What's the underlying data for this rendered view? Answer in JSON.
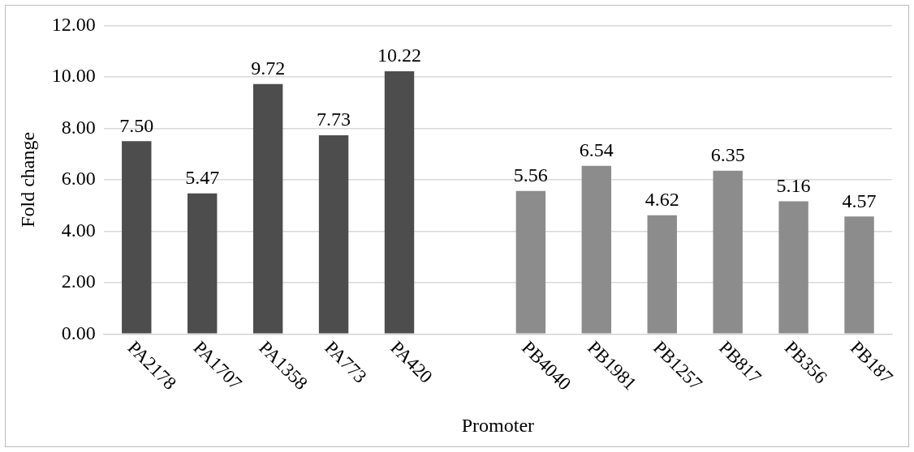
{
  "chart_data": {
    "type": "bar",
    "xlabel": "Promoter",
    "ylabel": "Fold change",
    "categories": [
      "PA2178",
      "PA1707",
      "PA1358",
      "PA773",
      "PA420",
      null,
      "PB4040",
      "PB1981",
      "PB1257",
      "PB817",
      "PB356",
      "PB187"
    ],
    "values": [
      7.5,
      5.47,
      9.72,
      7.73,
      10.22,
      null,
      5.56,
      6.54,
      4.62,
      6.35,
      5.16,
      4.57
    ],
    "value_labels": [
      "7.50",
      "5.47",
      "9.72",
      "7.73",
      "10.22",
      null,
      "5.56",
      "6.54",
      "4.62",
      "6.35",
      "5.16",
      "4.57"
    ],
    "colors": [
      "#4d4d4d",
      "#4d4d4d",
      "#4d4d4d",
      "#4d4d4d",
      "#4d4d4d",
      "#4d4d4d",
      "#8c8c8c",
      "#8c8c8c",
      "#8c8c8c",
      "#8c8c8c",
      "#8c8c8c",
      "#8c8c8c"
    ],
    "ylim": [
      0,
      12
    ],
    "yticks": [
      {
        "value": 0,
        "label": "0.00"
      },
      {
        "value": 2,
        "label": "2.00"
      },
      {
        "value": 4,
        "label": "4.00"
      },
      {
        "value": 6,
        "label": "6.00"
      },
      {
        "value": 8,
        "label": "8.00"
      },
      {
        "value": 10,
        "label": "10.00"
      },
      {
        "value": 12,
        "label": "12.00"
      }
    ],
    "grid": "y",
    "legend": false
  }
}
